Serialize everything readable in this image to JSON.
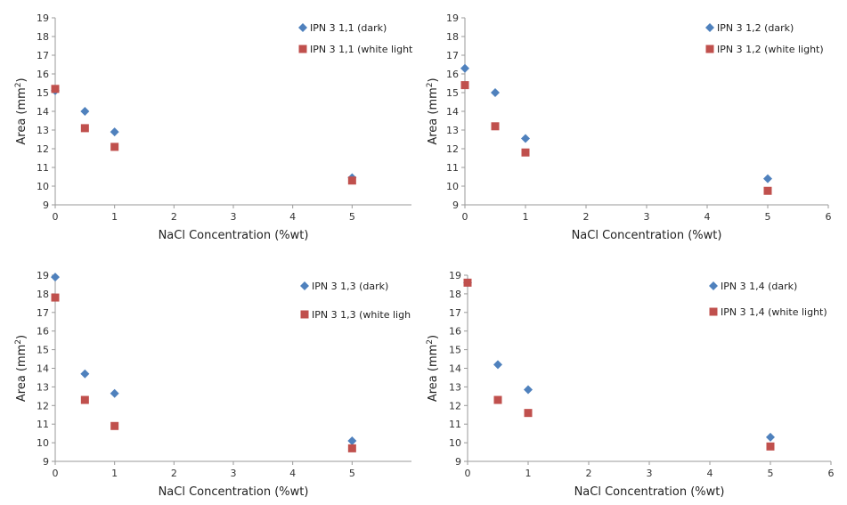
{
  "chart_data": [
    {
      "type": "scatter",
      "xlabel": "NaCl Concentration (%wt)",
      "ylabel_main": "Area (mm",
      "ylabel_sup": "2",
      "ylabel_end": ")",
      "xlim": [
        0,
        6
      ],
      "ylim": [
        9,
        19
      ],
      "xticks": [
        "0",
        "1",
        "2",
        "3",
        "4",
        "5"
      ],
      "yticks": [
        "9",
        "10",
        "11",
        "12",
        "13",
        "14",
        "15",
        "16",
        "17",
        "18",
        "19"
      ],
      "grid": false,
      "legend_position": "top-right",
      "series": [
        {
          "name": "IPN 3 1,1 (dark)",
          "marker": "diamond",
          "color": "#4f81bd",
          "x": [
            0,
            0.5,
            1,
            5
          ],
          "y": [
            15.1,
            14.0,
            12.9,
            10.45
          ]
        },
        {
          "name": "IPN 3 1,1 (white light",
          "marker": "square",
          "color": "#c0504d",
          "x": [
            0,
            0.5,
            1,
            5
          ],
          "y": [
            15.2,
            13.1,
            12.1,
            10.3
          ]
        }
      ]
    },
    {
      "type": "scatter",
      "xlabel": "NaCl Concentration (%wt)",
      "ylabel_main": "Area (mm",
      "ylabel_sup": "2",
      "ylabel_end": ")",
      "xlim": [
        0,
        6
      ],
      "ylim": [
        9,
        19
      ],
      "xticks": [
        "0",
        "1",
        "2",
        "3",
        "4",
        "5",
        "6"
      ],
      "yticks": [
        "9",
        "10",
        "11",
        "12",
        "13",
        "14",
        "15",
        "16",
        "17",
        "18",
        "19"
      ],
      "grid": false,
      "legend_position": "top-right",
      "series": [
        {
          "name": "IPN 3 1,2 (dark)",
          "marker": "diamond",
          "color": "#4f81bd",
          "x": [
            0,
            0.5,
            1,
            5
          ],
          "y": [
            16.3,
            15.0,
            12.55,
            10.4
          ]
        },
        {
          "name": "IPN 3 1,2 (white light)",
          "marker": "square",
          "color": "#c0504d",
          "x": [
            0,
            0.5,
            1,
            5
          ],
          "y": [
            15.4,
            13.2,
            11.8,
            9.75
          ]
        }
      ]
    },
    {
      "type": "scatter",
      "xlabel": "NaCl Concentration (%wt)",
      "ylabel_main": "Area (mm",
      "ylabel_sup": "2",
      "ylabel_end": ")",
      "xlim": [
        0,
        6
      ],
      "ylim": [
        9,
        19
      ],
      "xticks": [
        "0",
        "1",
        "2",
        "3",
        "4",
        "5"
      ],
      "yticks": [
        "9",
        "10",
        "11",
        "12",
        "13",
        "14",
        "15",
        "16",
        "17",
        "18",
        "19"
      ],
      "grid": false,
      "legend_position": "top-right",
      "series": [
        {
          "name": "IPN 3 1,3 (dark)",
          "marker": "diamond",
          "color": "#4f81bd",
          "x": [
            0,
            0.5,
            1,
            5
          ],
          "y": [
            18.9,
            13.7,
            12.65,
            10.1
          ]
        },
        {
          "name": "IPN 3 1,3 (white ligh",
          "marker": "square",
          "color": "#c0504d",
          "x": [
            0,
            0.5,
            1,
            5
          ],
          "y": [
            17.8,
            12.3,
            10.9,
            9.7
          ]
        }
      ]
    },
    {
      "type": "scatter",
      "xlabel": "NaCl Concentration (%wt)",
      "ylabel_main": "Area (mm",
      "ylabel_sup": "2",
      "ylabel_end": ")",
      "xlim": [
        0,
        6
      ],
      "ylim": [
        9,
        19
      ],
      "xticks": [
        "0",
        "1",
        "2",
        "3",
        "4",
        "5",
        "6"
      ],
      "yticks": [
        "9",
        "10",
        "11",
        "12",
        "13",
        "14",
        "15",
        "16",
        "17",
        "18",
        "19"
      ],
      "grid": false,
      "legend_position": "top-right",
      "series": [
        {
          "name": "IPN 3 1,4 (dark)",
          "marker": "diamond",
          "color": "#4f81bd",
          "x": [
            0,
            0.5,
            1,
            5
          ],
          "y": [
            18.6,
            14.2,
            12.85,
            10.3
          ]
        },
        {
          "name": "IPN 3 1,4 (white light)",
          "marker": "square",
          "color": "#c0504d",
          "x": [
            0,
            0.5,
            1,
            5
          ],
          "y": [
            18.6,
            12.3,
            11.6,
            9.8
          ]
        }
      ]
    }
  ]
}
